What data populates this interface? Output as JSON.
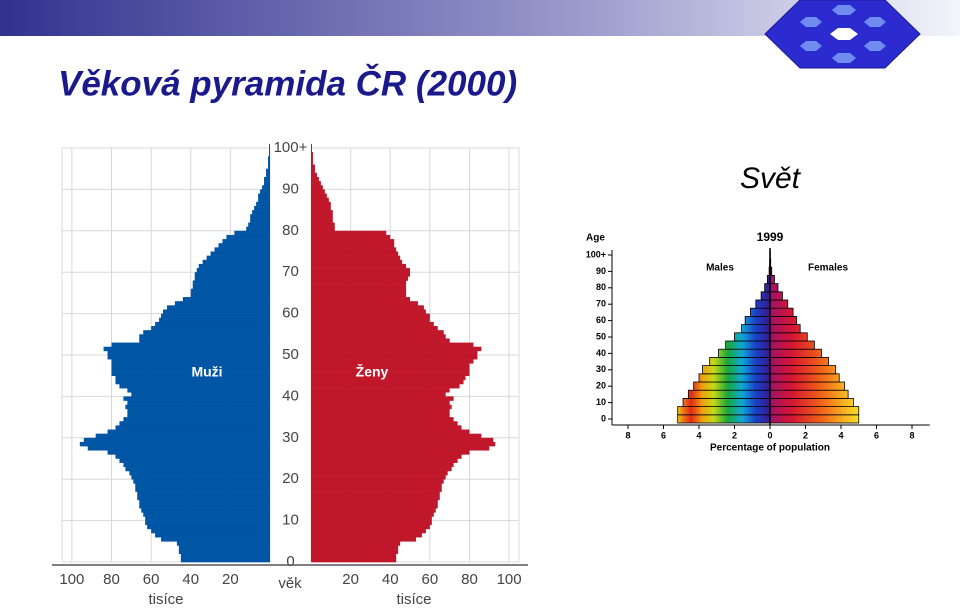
{
  "title": "Věková pyramida ČR (2000)",
  "subtitle": "Svět",
  "chart_data": [
    {
      "type": "pyramid",
      "y": [
        0,
        1,
        2,
        3,
        4,
        5,
        6,
        7,
        8,
        9,
        10,
        11,
        12,
        13,
        14,
        15,
        16,
        17,
        18,
        19,
        20,
        21,
        22,
        23,
        24,
        25,
        26,
        27,
        28,
        29,
        30,
        31,
        32,
        33,
        34,
        35,
        36,
        37,
        38,
        39,
        40,
        41,
        42,
        43,
        44,
        45,
        46,
        47,
        48,
        49,
        50,
        51,
        52,
        53,
        54,
        55,
        56,
        57,
        58,
        59,
        60,
        61,
        62,
        63,
        64,
        65,
        66,
        67,
        68,
        69,
        70,
        71,
        72,
        73,
        74,
        75,
        76,
        77,
        78,
        79,
        80,
        81,
        82,
        83,
        84,
        85,
        86,
        87,
        88,
        89,
        90,
        91,
        92,
        93,
        94,
        95,
        96,
        97,
        98,
        99,
        100
      ],
      "series": [
        {
          "name": "Muži",
          "color": "#0055a5",
          "values": [
            45,
            45,
            46,
            46,
            47,
            55,
            58,
            60,
            62,
            63,
            63,
            64,
            65,
            66,
            66,
            67,
            67,
            68,
            68,
            69,
            70,
            71,
            73,
            74,
            76,
            78,
            82,
            92,
            96,
            94,
            88,
            82,
            78,
            76,
            74,
            72,
            72,
            73,
            72,
            74,
            70,
            72,
            76,
            78,
            78,
            80,
            80,
            80,
            80,
            82,
            82,
            84,
            80,
            66,
            66,
            64,
            60,
            58,
            56,
            55,
            54,
            52,
            48,
            44,
            40,
            40,
            39,
            39,
            38,
            38,
            37,
            36,
            34,
            32,
            30,
            28,
            26,
            24,
            22,
            18,
            12,
            11,
            10,
            10,
            9,
            8,
            7,
            6,
            6,
            5,
            4,
            3,
            3,
            2,
            2,
            1,
            1,
            1,
            0.5,
            0.5,
            0.5
          ]
        },
        {
          "name": "Ženy",
          "color": "#c0182a",
          "values": [
            43,
            43,
            44,
            44,
            45,
            53,
            56,
            58,
            60,
            61,
            61,
            62,
            63,
            64,
            64,
            65,
            65,
            66,
            66,
            67,
            68,
            69,
            71,
            72,
            74,
            76,
            80,
            90,
            93,
            92,
            86,
            80,
            76,
            74,
            72,
            70,
            70,
            71,
            70,
            72,
            68,
            70,
            75,
            77,
            78,
            80,
            80,
            80,
            82,
            84,
            84,
            86,
            82,
            70,
            68,
            67,
            64,
            62,
            60,
            60,
            58,
            57,
            54,
            50,
            48,
            48,
            48,
            48,
            49,
            50,
            50,
            48,
            46,
            45,
            44,
            43,
            42,
            42,
            40,
            38,
            12,
            12,
            11,
            11,
            11,
            10,
            10,
            9,
            8,
            7,
            6,
            5,
            4,
            3,
            2,
            2,
            1,
            1,
            1,
            0.5,
            0.5
          ]
        }
      ],
      "xlim": [
        0,
        105
      ],
      "xticks": [
        20,
        40,
        60,
        80,
        100
      ],
      "ylim": [
        0,
        100
      ],
      "yticks": [
        0,
        10,
        20,
        30,
        40,
        50,
        60,
        70,
        80,
        90,
        {
          "value": 100,
          "label": "100+"
        }
      ],
      "xlabel": "tisíce",
      "ylabel": "věk",
      "grid": true
    },
    {
      "type": "pyramid",
      "title": "1999",
      "y": [
        0,
        5,
        10,
        15,
        20,
        25,
        30,
        35,
        40,
        45,
        50,
        55,
        60,
        65,
        70,
        75,
        80,
        85,
        90,
        95,
        100
      ],
      "series": [
        {
          "name": "Males",
          "values": [
            5.2,
            5.2,
            4.9,
            4.6,
            4.3,
            4.0,
            3.8,
            3.4,
            2.9,
            2.5,
            2.0,
            1.6,
            1.4,
            1.1,
            0.8,
            0.5,
            0.3,
            0.15,
            0.05,
            0.02,
            0.01
          ]
        },
        {
          "name": "Females",
          "values": [
            5.0,
            5.0,
            4.7,
            4.4,
            4.2,
            3.9,
            3.7,
            3.3,
            2.9,
            2.5,
            2.1,
            1.7,
            1.5,
            1.3,
            1.0,
            0.7,
            0.45,
            0.25,
            0.1,
            0.04,
            0.02
          ]
        }
      ],
      "xlim": [
        -9,
        9
      ],
      "xticks": [
        {
          "value": -8,
          "label": "8"
        },
        {
          "value": -6,
          "label": "6"
        },
        {
          "value": -4,
          "label": "4"
        },
        {
          "value": -2,
          "label": "2"
        },
        0,
        2,
        4,
        6,
        8
      ],
      "ylim": [
        0,
        100
      ],
      "yticks": [
        0,
        10,
        20,
        30,
        40,
        50,
        60,
        70,
        80,
        90,
        {
          "value": 100,
          "label": "100+"
        }
      ],
      "xlabel": "Percentage of population",
      "ylabel": "Age",
      "grid": false
    }
  ]
}
